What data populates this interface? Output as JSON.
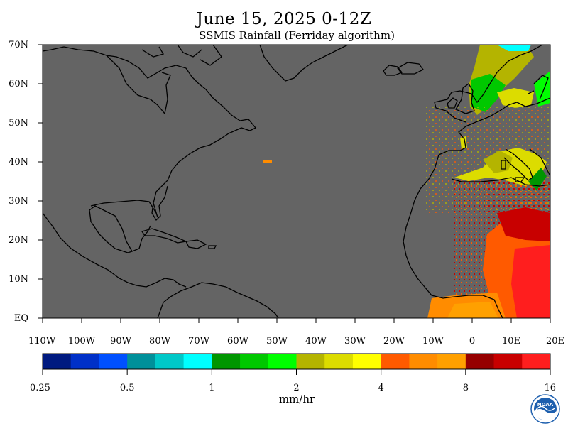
{
  "header": {
    "title": "June 15, 2025 0-12Z",
    "subtitle": "SSMIS Rainfall (Ferriday algorithm)"
  },
  "map": {
    "lon_range": [
      -110,
      20
    ],
    "lat_range": [
      0,
      70
    ],
    "background_color": "#646464",
    "land_outline_color": "#000000",
    "lat_ticks": [
      {
        "value": 70,
        "label": "70N"
      },
      {
        "value": 60,
        "label": "60N"
      },
      {
        "value": 50,
        "label": "50N"
      },
      {
        "value": 40,
        "label": "40N"
      },
      {
        "value": 30,
        "label": "30N"
      },
      {
        "value": 20,
        "label": "20N"
      },
      {
        "value": 10,
        "label": "10N"
      },
      {
        "value": 0,
        "label": "EQ"
      }
    ],
    "lon_ticks": [
      {
        "value": -110,
        "label": "110W"
      },
      {
        "value": -100,
        "label": "100W"
      },
      {
        "value": -90,
        "label": "90W"
      },
      {
        "value": -80,
        "label": "80W"
      },
      {
        "value": -70,
        "label": "70W"
      },
      {
        "value": -60,
        "label": "60W"
      },
      {
        "value": -50,
        "label": "50W"
      },
      {
        "value": -40,
        "label": "40W"
      },
      {
        "value": -30,
        "label": "30W"
      },
      {
        "value": -20,
        "label": "20W"
      },
      {
        "value": -10,
        "label": "10W"
      },
      {
        "value": 0,
        "label": "0"
      },
      {
        "value": 10,
        "label": "10E"
      },
      {
        "value": 20,
        "label": "20E"
      }
    ]
  },
  "colorbar": {
    "units": "mm/hr",
    "colors": [
      "#001a80",
      "#0030c8",
      "#0050ff",
      "#00909a",
      "#00c8c8",
      "#00ffff",
      "#009600",
      "#00c800",
      "#00ff00",
      "#b4b400",
      "#dcdc00",
      "#ffff00",
      "#ff5a00",
      "#ff8c00",
      "#ffa000",
      "#960000",
      "#c80000",
      "#ff1e1e"
    ],
    "tick_labels": [
      "0.25",
      "0.5",
      "1",
      "2",
      "4",
      "8",
      "16"
    ]
  },
  "logo": {
    "icon": "noaa-logo-icon",
    "text": "NOAA"
  }
}
